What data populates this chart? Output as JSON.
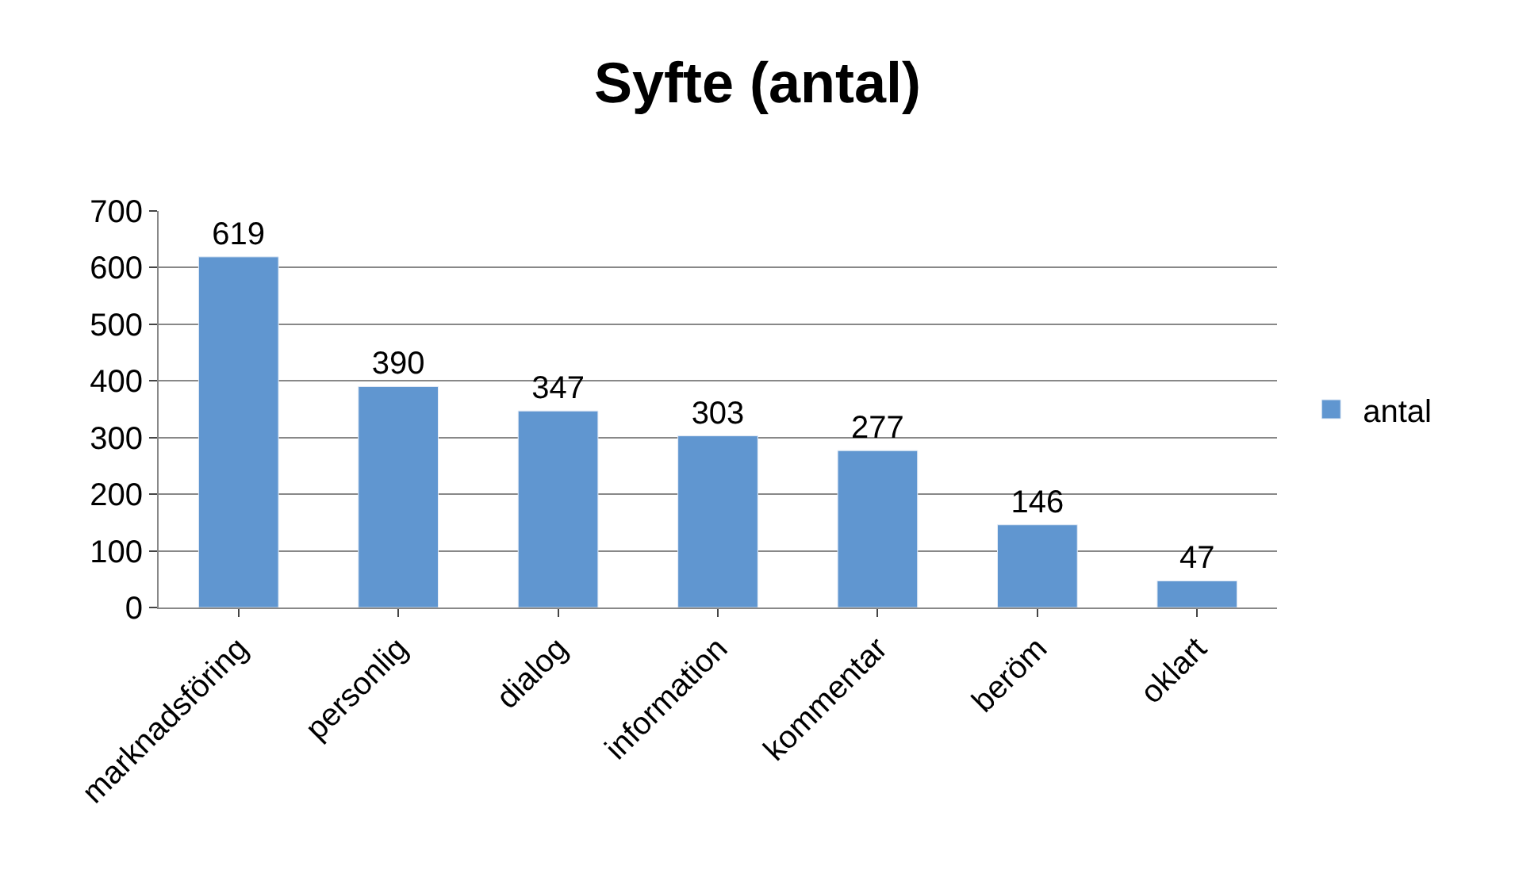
{
  "chart_data": {
    "type": "bar",
    "title": "Syfte (antal)",
    "categories": [
      "marknadsföring",
      "personlig",
      "dialog",
      "information",
      "kommentar",
      "beröm",
      "oklart"
    ],
    "series": [
      {
        "name": "antal",
        "color": "#6096d0",
        "values": [
          619,
          390,
          347,
          303,
          277,
          146,
          47
        ]
      }
    ],
    "ylim": [
      0,
      700
    ],
    "yticks": [
      0,
      100,
      200,
      300,
      400,
      500,
      600,
      700
    ],
    "grid": "y",
    "legend": "right",
    "data_labels": true
  }
}
